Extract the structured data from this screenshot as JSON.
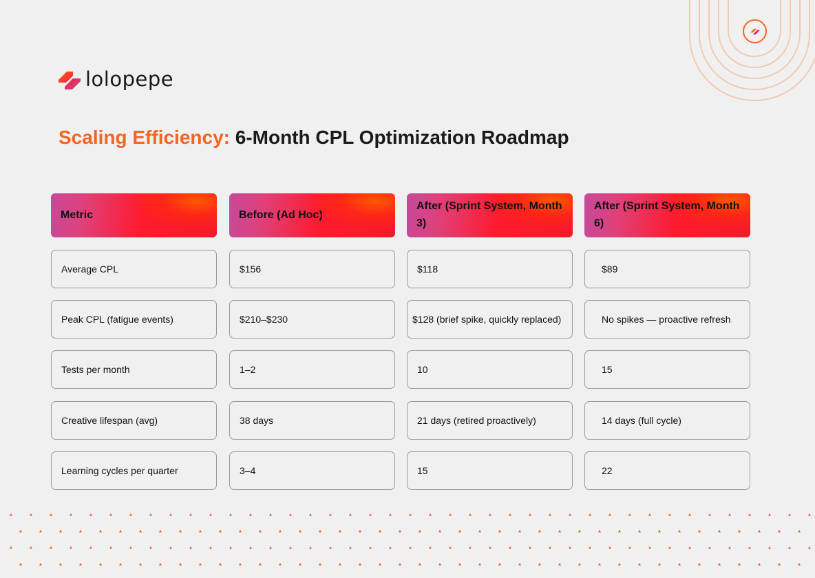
{
  "brand": {
    "name": "lolopepe",
    "colors": {
      "accent": "#f26522",
      "gradient_pink": "#c54a9a",
      "gradient_red": "#ff1a2e"
    },
    "logo_icon": "lolopepe-logo-mark-icon"
  },
  "title": {
    "accent": "Scaling Efficiency:",
    "rest": "6-Month CPL Optimization Roadmap"
  },
  "table": {
    "headers": [
      "Metric",
      "Before (Ad Hoc)",
      "After (Sprint System, Month 3)",
      "After (Sprint System, Month 6)"
    ],
    "rows": [
      [
        "Average CPL",
        "$156",
        "$118",
        "$89"
      ],
      [
        "Peak CPL (fatigue events)",
        "$210–$230",
        "$128 (brief spike, quickly replaced)",
        "No spikes — proactive refresh"
      ],
      [
        "Tests per month",
        "1–2",
        "10",
        "15"
      ],
      [
        "Creative lifespan (avg)",
        "38 days",
        "21 days (retired proactively)",
        "14 days (full cycle)"
      ],
      [
        "Learning cycles per quarter",
        "3–4",
        "15",
        "22"
      ]
    ]
  }
}
